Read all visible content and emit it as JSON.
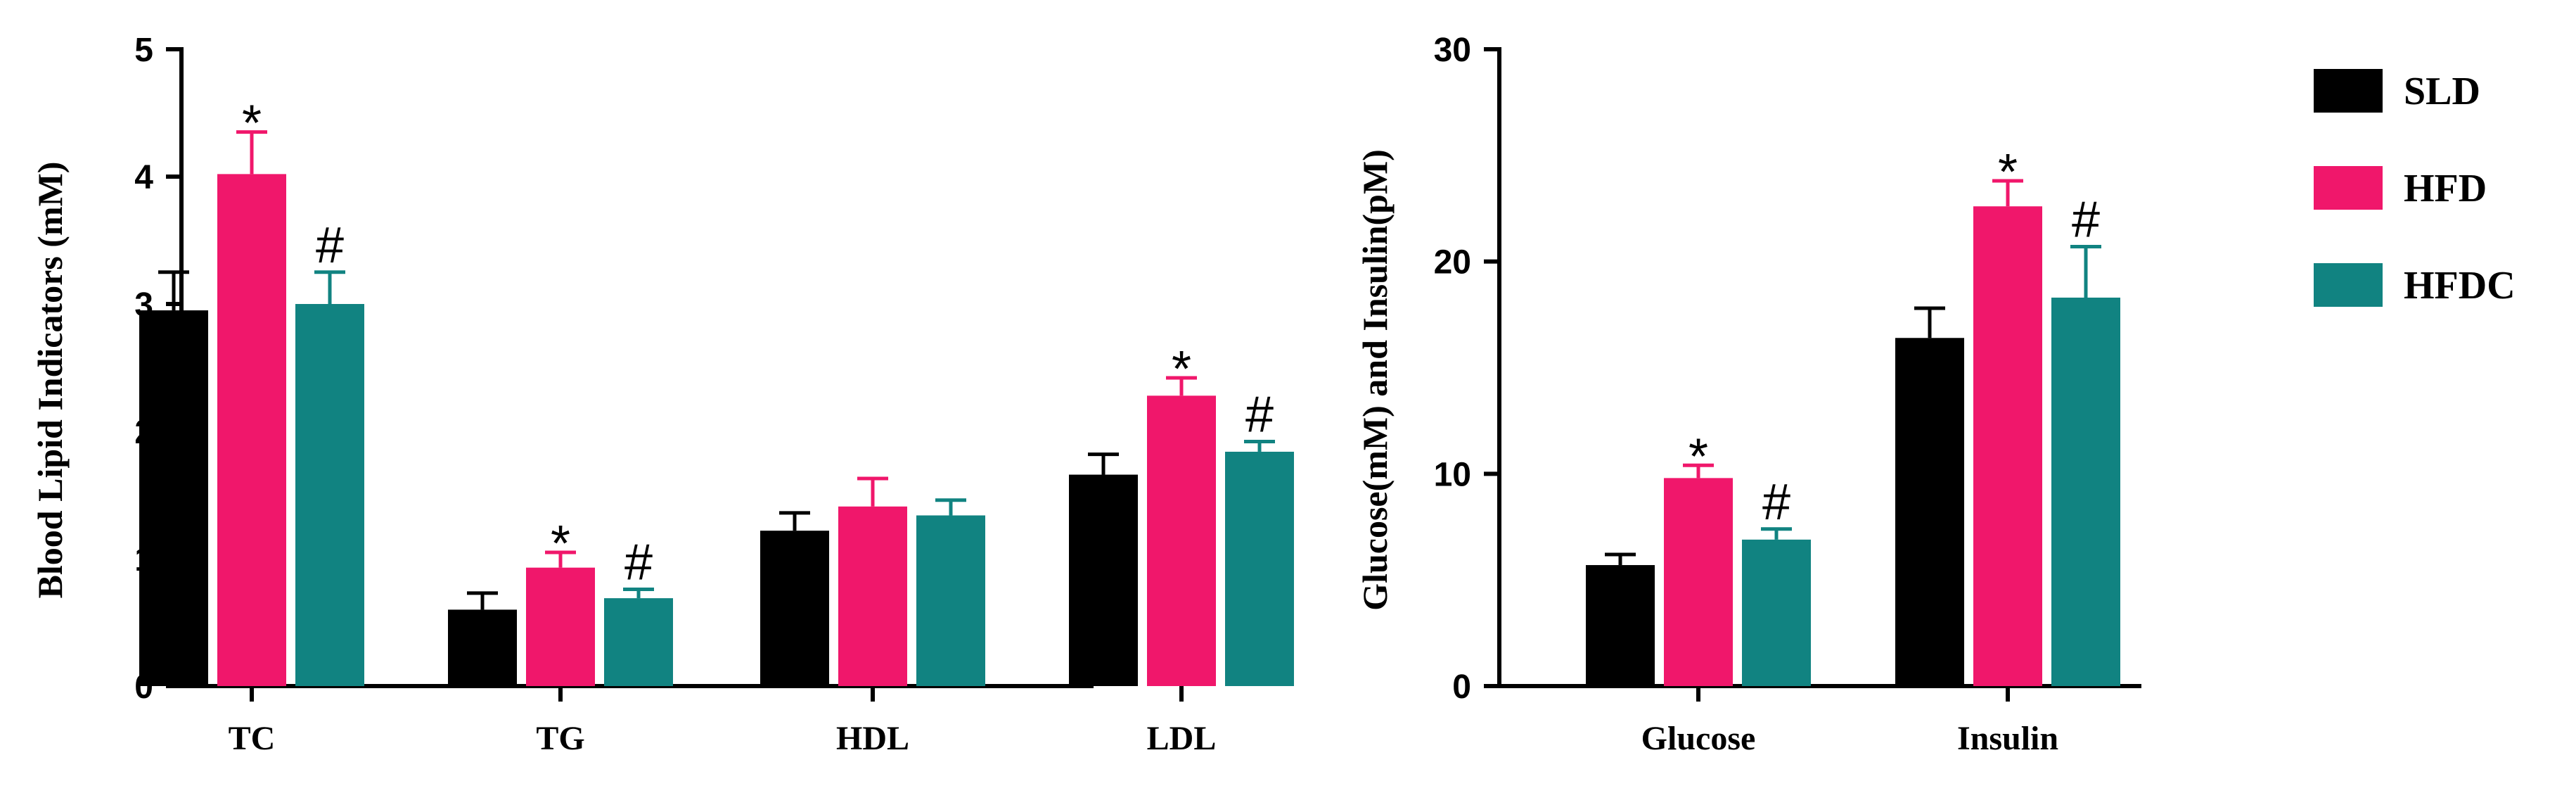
{
  "colors": {
    "SLD": "#000000",
    "HFD": "#f0176b",
    "HFDC": "#118381"
  },
  "chart_data": [
    {
      "type": "bar",
      "ylabel": "Blood Lipid Indicators (mM)",
      "ylim": [
        0,
        5
      ],
      "yticks": [
        "0",
        "1",
        "2",
        "3",
        "4",
        "5"
      ],
      "categories": [
        "TC",
        "TG",
        "HDL",
        "LDL"
      ],
      "series": [
        {
          "name": "SLD",
          "values": [
            2.95,
            0.6,
            1.22,
            1.66
          ],
          "errors": [
            0.3,
            0.13,
            0.14,
            0.16
          ]
        },
        {
          "name": "HFD",
          "values": [
            4.02,
            0.93,
            1.41,
            2.28
          ],
          "errors": [
            0.33,
            0.12,
            0.22,
            0.14
          ]
        },
        {
          "name": "HFDC",
          "values": [
            3.0,
            0.69,
            1.34,
            1.84
          ],
          "errors": [
            0.25,
            0.07,
            0.12,
            0.08
          ]
        }
      ],
      "annotations": [
        [
          "",
          "*",
          "#"
        ],
        [
          "",
          "*",
          "#"
        ],
        [
          "",
          "",
          ""
        ],
        [
          "",
          "*",
          "#"
        ]
      ]
    },
    {
      "type": "bar",
      "ylabel": "Glucose(mM) and Insulin(pM)",
      "ylim": [
        0,
        30
      ],
      "yticks": [
        "0",
        "10",
        "20",
        "30"
      ],
      "categories": [
        "Glucose",
        "Insulin"
      ],
      "series": [
        {
          "name": "SLD",
          "values": [
            5.7,
            16.4
          ],
          "errors": [
            0.5,
            1.4
          ]
        },
        {
          "name": "HFD",
          "values": [
            9.8,
            22.6
          ],
          "errors": [
            0.6,
            1.2
          ]
        },
        {
          "name": "HFDC",
          "values": [
            6.9,
            18.3
          ],
          "errors": [
            0.5,
            2.4
          ]
        }
      ],
      "annotations": [
        [
          "",
          "*",
          "#"
        ],
        [
          "",
          "*",
          "#"
        ]
      ]
    }
  ],
  "legend": {
    "items": [
      "SLD",
      "HFD",
      "HFDC"
    ]
  }
}
